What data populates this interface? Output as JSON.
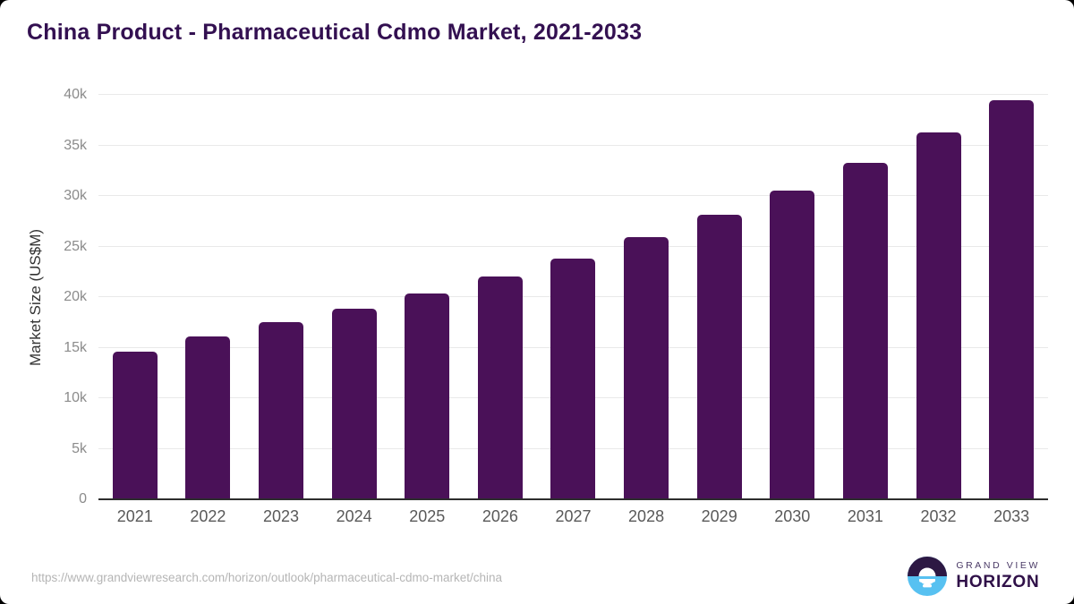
{
  "title": "China Product - Pharmaceutical Cdmo Market, 2021-2033",
  "chart_data": {
    "type": "bar",
    "title": "China Product - Pharmaceutical Cdmo Market, 2021-2033",
    "categories": [
      "2021",
      "2022",
      "2023",
      "2024",
      "2025",
      "2026",
      "2027",
      "2028",
      "2029",
      "2030",
      "2031",
      "2032",
      "2033"
    ],
    "values": [
      14600,
      16150,
      17500,
      18850,
      20350,
      22000,
      23800,
      25900,
      28150,
      30500,
      33300,
      36250,
      39450
    ],
    "xlabel": "",
    "ylabel": "Market Size (US$M)",
    "ylim": [
      0,
      40000
    ],
    "ytick_interval": 5000,
    "ytick_labels": [
      "0",
      "5k",
      "10k",
      "15k",
      "20k",
      "25k",
      "30k",
      "35k",
      "40k"
    ],
    "grid": true,
    "legend": "none",
    "bar_color": "#4a1158"
  },
  "colors": {
    "title": "#331051",
    "bar": "#4a1158",
    "gridline": "#e9e9e9",
    "axis_line": "#2d2d2d",
    "tick_label": "#8b8b8b",
    "x_label": "#595959",
    "url_text": "#b5b5b5",
    "logo_dark_purple": "#2d1843",
    "logo_light_blue": "#57c1f1"
  },
  "footer": {
    "source_url": "https://www.grandviewresearch.com/horizon/outlook/pharmaceutical-cdmo-market/china",
    "logo": {
      "line1": "GRAND VIEW",
      "line2": "HORIZON"
    }
  }
}
